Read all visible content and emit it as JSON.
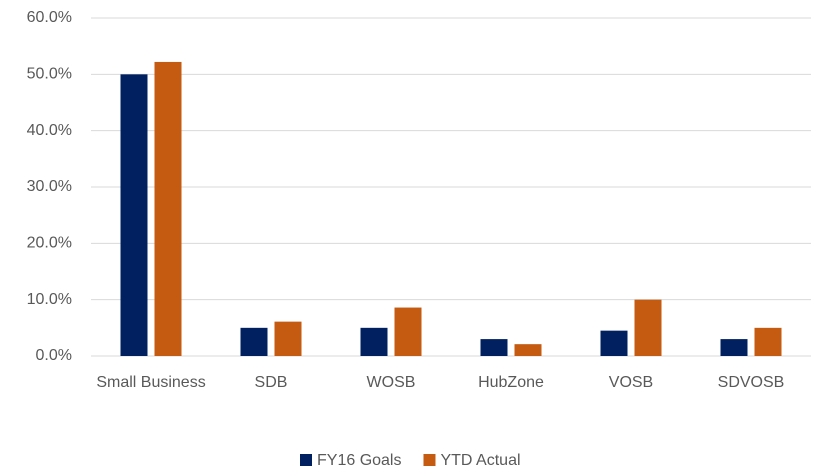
{
  "chart_data": {
    "type": "bar",
    "categories": [
      "Small Business",
      "SDB",
      "WOSB",
      "HubZone",
      "VOSB",
      "SDVOSB"
    ],
    "series": [
      {
        "name": "FY16 Goals",
        "color": "#002060",
        "values": [
          50,
          5,
          5,
          3,
          4.5,
          3
        ]
      },
      {
        "name": "YTD Actual",
        "color": "#c55a11",
        "values": [
          52.2,
          6.1,
          8.6,
          2.1,
          10,
          5
        ]
      }
    ],
    "ylim": [
      0,
      60
    ],
    "yticks": [
      {
        "value": 0,
        "label": "0.0%"
      },
      {
        "value": 10,
        "label": "10.0%"
      },
      {
        "value": 20,
        "label": "20.0%"
      },
      {
        "value": 30,
        "label": "30.0%"
      },
      {
        "value": 40,
        "label": "40.0%"
      },
      {
        "value": 50,
        "label": "50.0%"
      },
      {
        "value": 60,
        "label": "60.0%"
      }
    ],
    "grid": true,
    "legend": "bottom"
  }
}
